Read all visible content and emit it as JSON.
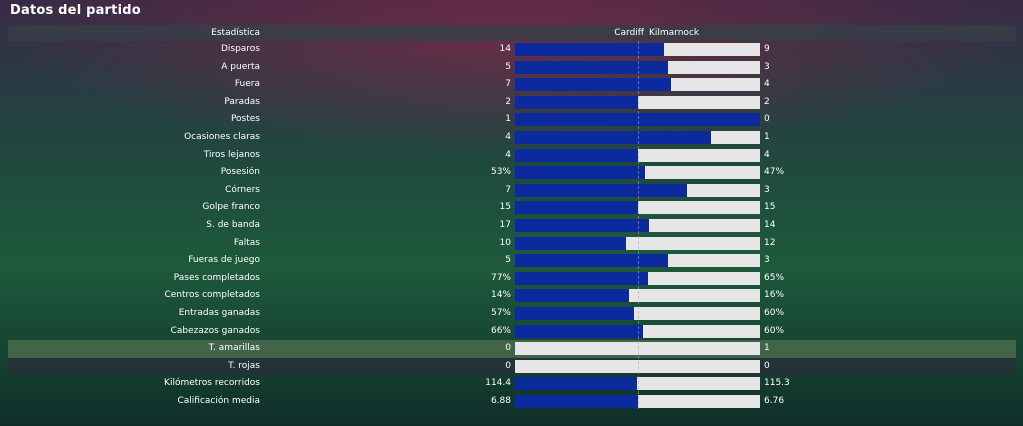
{
  "title": "Datos del partido",
  "header": {
    "stat_label": "Estadística",
    "home_team": "Cardiff",
    "away_team": "Kilmarnock"
  },
  "colors": {
    "home_bar": "#0a2a9e",
    "away_bar": "#e6e6e6",
    "highlight_row": "#7a8c64"
  },
  "stats": [
    {
      "label": "Disparos",
      "home": "14",
      "away": "9",
      "home_share": 0.609
    },
    {
      "label": "A puerta",
      "home": "5",
      "away": "3",
      "home_share": 0.625
    },
    {
      "label": "Fuera",
      "home": "7",
      "away": "4",
      "home_share": 0.636
    },
    {
      "label": "Paradas",
      "home": "2",
      "away": "2",
      "home_share": 0.5
    },
    {
      "label": "Postes",
      "home": "1",
      "away": "0",
      "home_share": 1.0
    },
    {
      "label": "Ocasiones claras",
      "home": "4",
      "away": "1",
      "home_share": 0.8
    },
    {
      "label": "Tiros lejanos",
      "home": "4",
      "away": "4",
      "home_share": 0.5
    },
    {
      "label": "Posesión",
      "home": "53%",
      "away": "47%",
      "home_share": 0.53
    },
    {
      "label": "Córners",
      "home": "7",
      "away": "3",
      "home_share": 0.7
    },
    {
      "label": "Golpe franco",
      "home": "15",
      "away": "15",
      "home_share": 0.5
    },
    {
      "label": "S. de banda",
      "home": "17",
      "away": "14",
      "home_share": 0.548
    },
    {
      "label": "Faltas",
      "home": "10",
      "away": "12",
      "home_share": 0.455
    },
    {
      "label": "Fueras de juego",
      "home": "5",
      "away": "3",
      "home_share": 0.625
    },
    {
      "label": "Pases completados",
      "home": "77%",
      "away": "65%",
      "home_share": 0.542
    },
    {
      "label": "Centros completados",
      "home": "14%",
      "away": "16%",
      "home_share": 0.467
    },
    {
      "label": "Entradas ganadas",
      "home": "57%",
      "away": "60%",
      "home_share": 0.487
    },
    {
      "label": "Cabezazos ganados",
      "home": "66%",
      "away": "60%",
      "home_share": 0.524
    },
    {
      "label": "T. amarillas",
      "home": "0",
      "away": "1",
      "home_share": 0.0,
      "row_style": "highlight"
    },
    {
      "label": "T. rojas",
      "home": "0",
      "away": "0",
      "home_share": 0.0,
      "row_style": "dark"
    },
    {
      "label": "Kilómetros recorridos",
      "home": "114.4",
      "away": "115.3",
      "home_share": 0.498
    },
    {
      "label": "Calificación media",
      "home": "6.88",
      "away": "6.76",
      "home_share": 0.504
    }
  ]
}
